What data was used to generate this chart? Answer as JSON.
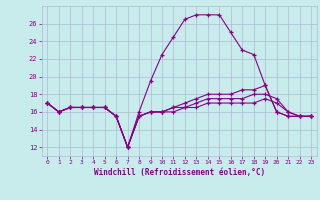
{
  "xlabel": "Windchill (Refroidissement éolien,°C)",
  "background_color": "#c8ecec",
  "grid_color": "#b0b8d8",
  "line_color": "#880088",
  "xlim": [
    -0.5,
    23.5
  ],
  "ylim": [
    11,
    28
  ],
  "xticks": [
    0,
    1,
    2,
    3,
    4,
    5,
    6,
    7,
    8,
    9,
    10,
    11,
    12,
    13,
    14,
    15,
    16,
    17,
    18,
    19,
    20,
    21,
    22,
    23
  ],
  "yticks": [
    12,
    14,
    16,
    18,
    20,
    22,
    24,
    26
  ],
  "series": [
    [
      17.0,
      16.0,
      16.5,
      16.5,
      16.5,
      16.5,
      15.5,
      12.0,
      16.0,
      19.5,
      22.5,
      24.5,
      26.5,
      27.0,
      27.0,
      27.0,
      25.0,
      23.0,
      22.5,
      19.0,
      16.0,
      15.5,
      15.5,
      15.5
    ],
    [
      17.0,
      16.0,
      16.5,
      16.5,
      16.5,
      16.5,
      15.5,
      12.0,
      15.5,
      16.0,
      16.0,
      16.5,
      17.0,
      17.5,
      18.0,
      18.0,
      18.0,
      18.5,
      18.5,
      19.0,
      16.0,
      15.5,
      15.5,
      15.5
    ],
    [
      17.0,
      16.0,
      16.5,
      16.5,
      16.5,
      16.5,
      15.5,
      12.0,
      15.5,
      16.0,
      16.0,
      16.5,
      16.5,
      17.0,
      17.5,
      17.5,
      17.5,
      17.5,
      18.0,
      18.0,
      17.5,
      16.0,
      15.5,
      15.5
    ],
    [
      17.0,
      16.0,
      16.5,
      16.5,
      16.5,
      16.5,
      15.5,
      12.0,
      15.5,
      16.0,
      16.0,
      16.0,
      16.5,
      16.5,
      17.0,
      17.0,
      17.0,
      17.0,
      17.0,
      17.5,
      17.0,
      16.0,
      15.5,
      15.5
    ]
  ]
}
